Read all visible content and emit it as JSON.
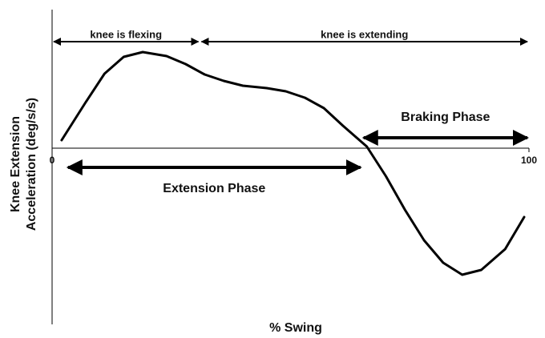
{
  "chart_data": {
    "type": "line",
    "xlabel": "% Swing",
    "ylabel": [
      "Knee Extension",
      "Acceleration (deg/s/s)"
    ],
    "xlim": [
      0,
      100
    ],
    "xticks": [
      0,
      100
    ],
    "ylim": [
      -220,
      173
    ],
    "color": "#000000",
    "x": [
      2,
      7,
      11,
      15,
      19,
      24,
      28,
      32,
      36,
      40,
      45,
      49,
      53,
      57,
      61,
      66,
      70,
      74,
      78,
      82,
      86,
      90,
      95,
      99
    ],
    "values": [
      10,
      57,
      93,
      114,
      120,
      115,
      105,
      92,
      84,
      78,
      75,
      71,
      63,
      50,
      28,
      2,
      -35,
      -77,
      -115,
      -143,
      -158,
      -152,
      -126,
      -86
    ],
    "annotations": [
      {
        "text": "knee is flexing",
        "x": [
          0,
          31
        ]
      },
      {
        "text": "knee is extending",
        "x": [
          31,
          100
        ]
      },
      {
        "text": "Braking Phase",
        "x": [
          65,
          100
        ]
      },
      {
        "text": "Extension Phase",
        "x": [
          3,
          65
        ]
      }
    ]
  }
}
